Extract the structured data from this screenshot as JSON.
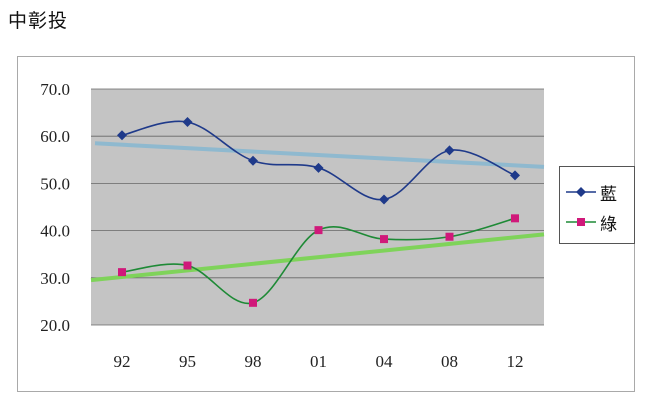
{
  "page": {
    "title": "中彰投"
  },
  "colors": {
    "plot_bg": "#c4c4c4",
    "blue_series": "#1f3a8a",
    "green_series": "#1e8a36",
    "green_marker": "#d0197a",
    "blue_trend": "#8fb9cf",
    "green_trend": "#7fd35a",
    "grid": "#666666"
  },
  "chart_data": {
    "type": "line",
    "categories": [
      "92",
      "95",
      "98",
      "01",
      "04",
      "08",
      "12"
    ],
    "ylim": [
      20,
      70
    ],
    "yticks": [
      "70.0",
      "60.0",
      "50.0",
      "40.0",
      "30.0",
      "20.0"
    ],
    "grid": true,
    "legend_position": "right",
    "series": [
      {
        "name": "藍",
        "marker": "diamond",
        "values": [
          60.2,
          63.0,
          54.8,
          53.3,
          46.6,
          57.0,
          51.7
        ]
      },
      {
        "name": "綠",
        "marker": "square",
        "values": [
          31.2,
          32.6,
          24.7,
          40.1,
          38.2,
          38.7,
          42.6
        ]
      }
    ],
    "trendlines": [
      {
        "series": "藍",
        "start": 58.5,
        "end": 53.5
      },
      {
        "series": "綠",
        "start": 29.5,
        "end": 39.2
      }
    ]
  }
}
